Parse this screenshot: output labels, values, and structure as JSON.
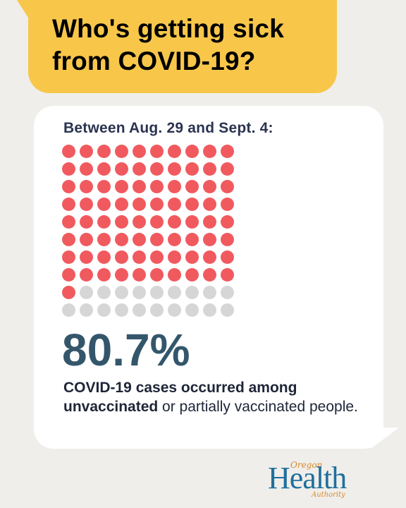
{
  "header": {
    "title_line1": "Who's getting sick",
    "title_line2": "from COVID-19?"
  },
  "card": {
    "subtitle": "Between Aug. 29 and Sept. 4:",
    "percent": "80.7%",
    "desc_bold1": "COVID-19 cases occurred among",
    "desc_bold2": "unvaccinated",
    "desc_rest": " or partially vaccinated people."
  },
  "dot_grid": {
    "total": 100,
    "highlighted": 81,
    "highlight_color": "#f05a5f",
    "base_color": "#d6d6d6"
  },
  "logo": {
    "top": "Oregon",
    "main": "Health",
    "bottom": "Authority"
  },
  "colors": {
    "background": "#efeeeb",
    "header_bg": "#f8c74a",
    "card_bg": "#ffffff",
    "percent": "#34566b"
  }
}
